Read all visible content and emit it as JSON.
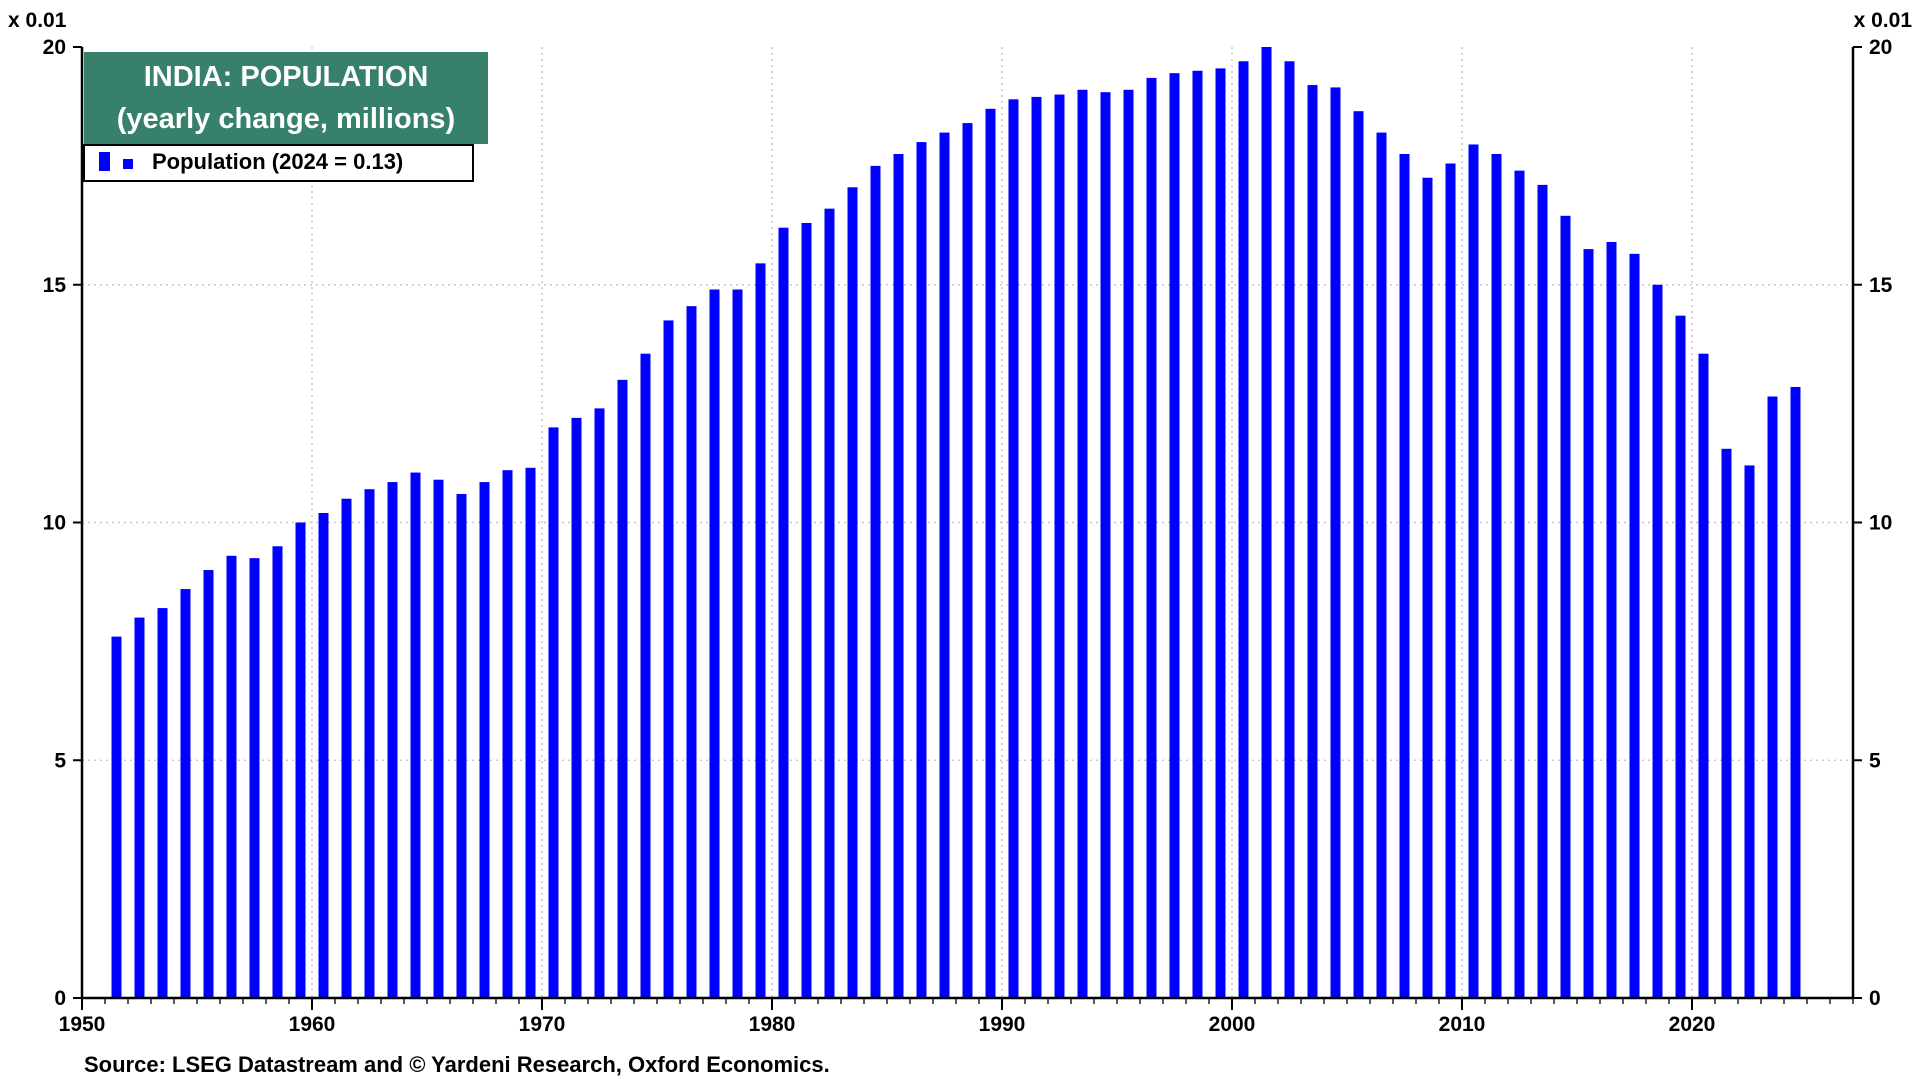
{
  "chart_data": {
    "type": "bar",
    "title": "INDIA: POPULATION",
    "subtitle": "(yearly change, millions)",
    "legend": {
      "label": "Population (2024 = 0.13)",
      "placement": "top-left"
    },
    "unit_multiplier_left": "x 0.01",
    "unit_multiplier_right": "x 0.01",
    "source": "Source: LSEG Datastream and © Yardeni Research, Oxford Economics.",
    "xlim": [
      1950,
      2027
    ],
    "ylim": [
      0,
      20
    ],
    "x_ticks": [
      1950,
      1960,
      1970,
      1980,
      1990,
      2000,
      2010,
      2020
    ],
    "x_tick_labels": [
      "1950",
      "1960",
      "1970",
      "1980",
      "1990",
      "2000",
      "2010",
      "2020"
    ],
    "y_ticks": [
      0,
      5,
      10,
      15,
      20
    ],
    "y_tick_labels": [
      "0",
      "5",
      "10",
      "15",
      "20"
    ],
    "grid": true,
    "series": [
      {
        "name": "Population (2024 = 0.13)",
        "color": "#0000ff",
        "x": [
          1951,
          1952,
          1953,
          1954,
          1955,
          1956,
          1957,
          1958,
          1959,
          1960,
          1961,
          1962,
          1963,
          1964,
          1965,
          1966,
          1967,
          1968,
          1969,
          1970,
          1971,
          1972,
          1973,
          1974,
          1975,
          1976,
          1977,
          1978,
          1979,
          1980,
          1981,
          1982,
          1983,
          1984,
          1985,
          1986,
          1987,
          1988,
          1989,
          1990,
          1991,
          1992,
          1993,
          1994,
          1995,
          1996,
          1997,
          1998,
          1999,
          2000,
          2001,
          2002,
          2003,
          2004,
          2005,
          2006,
          2007,
          2008,
          2009,
          2010,
          2011,
          2012,
          2013,
          2014,
          2015,
          2016,
          2017,
          2018,
          2019,
          2020,
          2021,
          2022,
          2023,
          2024
        ],
        "values": [
          7.6,
          8.0,
          8.2,
          8.6,
          9.0,
          9.3,
          9.25,
          9.5,
          10.0,
          10.2,
          10.5,
          10.7,
          10.85,
          11.05,
          10.9,
          10.6,
          10.85,
          11.1,
          11.15,
          12.0,
          12.2,
          12.4,
          13.0,
          13.55,
          14.25,
          14.55,
          14.9,
          14.9,
          15.45,
          16.2,
          16.3,
          16.6,
          17.05,
          17.5,
          17.75,
          18.0,
          18.2,
          18.4,
          18.7,
          18.9,
          18.95,
          19.0,
          19.1,
          19.05,
          19.1,
          19.35,
          19.45,
          19.5,
          19.55,
          19.7,
          20.0,
          19.7,
          19.2,
          19.15,
          18.65,
          18.2,
          17.75,
          17.25,
          17.55,
          17.95,
          17.75,
          17.4,
          17.1,
          16.45,
          15.75,
          15.9,
          15.65,
          15.0,
          14.35,
          13.55,
          11.55,
          11.2,
          12.65,
          12.85
        ]
      }
    ]
  }
}
